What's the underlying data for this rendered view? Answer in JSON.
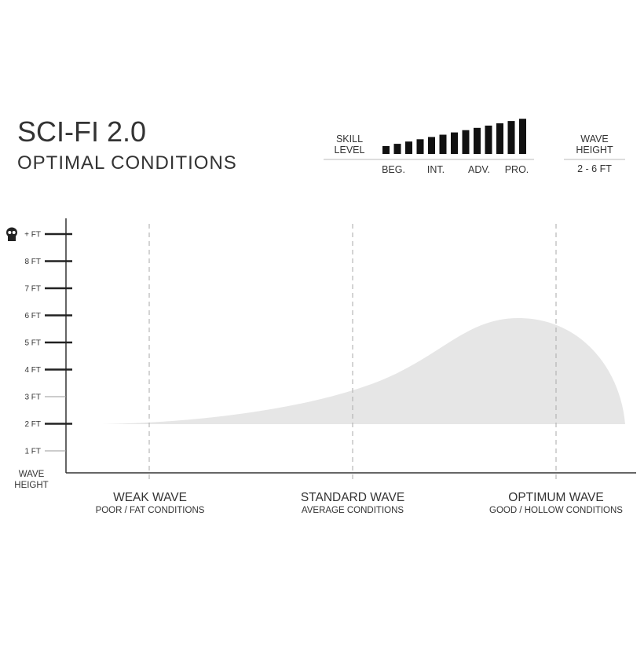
{
  "header": {
    "title": "SCI-FI 2.0",
    "subtitle": "OPTIMAL CONDITIONS"
  },
  "skill_level": {
    "label": [
      "SKILL",
      "LEVEL"
    ],
    "levels": [
      "BEG.",
      "INT.",
      "ADV.",
      "PRO."
    ]
  },
  "wave_height": {
    "label": [
      "WAVE",
      "HEIGHT"
    ],
    "value": "2 - 6 FT"
  },
  "y_axis": {
    "label": [
      "WAVE",
      "HEIGHT"
    ],
    "ticks": [
      "+ FT",
      "8 FT",
      "7 FT",
      "6 FT",
      "5 FT",
      "4 FT",
      "3 FT",
      "2 FT",
      "1 FT"
    ]
  },
  "x_axis": [
    {
      "label": "WEAK WAVE",
      "sublabel": "POOR / FAT CONDITIONS"
    },
    {
      "label": "STANDARD WAVE",
      "sublabel": "AVERAGE CONDITIONS"
    },
    {
      "label": "OPTIMUM WAVE",
      "sublabel": "GOOD / HOLLOW CONDITIONS"
    }
  ]
}
